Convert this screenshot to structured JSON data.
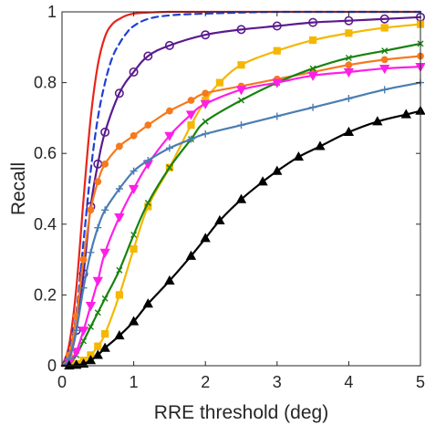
{
  "chart_data": {
    "type": "line",
    "title": "",
    "xlabel": "RRE threshold (deg)",
    "ylabel": "Recall",
    "xlim": [
      0,
      5
    ],
    "ylim": [
      0,
      1
    ],
    "xticks": [
      0,
      1,
      2,
      3,
      4,
      5
    ],
    "xtick_labels": [
      "0",
      "1",
      "2",
      "3",
      "4",
      "5"
    ],
    "yticks": [
      0,
      0.2,
      0.4,
      0.6,
      0.8,
      1
    ],
    "ytick_labels": [
      "0",
      "0.2",
      "0.4",
      "0.6",
      "0.8",
      "1"
    ],
    "grid": false,
    "legend": "none",
    "series": [
      {
        "color": "#e8241b",
        "dash": "solid",
        "marker": "none",
        "x": [
          0,
          0.1,
          0.2,
          0.3,
          0.4,
          0.5,
          0.6,
          0.7,
          0.8,
          0.9,
          1.0,
          1.2,
          1.5,
          2.0,
          3.0,
          4.0,
          5.0
        ],
        "y": [
          0,
          0.06,
          0.22,
          0.47,
          0.7,
          0.85,
          0.93,
          0.965,
          0.98,
          0.99,
          0.995,
          0.998,
          1,
          1,
          1,
          1,
          1
        ]
      },
      {
        "color": "#1f3fd6",
        "dash": "dashed",
        "marker": "none",
        "x": [
          0,
          0.1,
          0.2,
          0.3,
          0.4,
          0.5,
          0.6,
          0.7,
          0.8,
          0.9,
          1.0,
          1.2,
          1.5,
          2.0,
          3.0,
          4.0,
          5.0
        ],
        "y": [
          0,
          0.04,
          0.15,
          0.35,
          0.55,
          0.7,
          0.8,
          0.87,
          0.91,
          0.94,
          0.96,
          0.98,
          0.99,
          0.995,
          1,
          1,
          1
        ]
      },
      {
        "color": "#5b1a8e",
        "dash": "solid",
        "marker": "circle",
        "x": [
          0,
          0.1,
          0.2,
          0.3,
          0.4,
          0.5,
          0.6,
          0.8,
          1.0,
          1.2,
          1.5,
          2.0,
          2.5,
          3.0,
          3.5,
          4.0,
          4.5,
          5.0
        ],
        "y": [
          0,
          0.02,
          0.1,
          0.26,
          0.45,
          0.57,
          0.66,
          0.77,
          0.83,
          0.875,
          0.905,
          0.935,
          0.95,
          0.96,
          0.97,
          0.975,
          0.98,
          0.985
        ]
      },
      {
        "color": "#f5b700",
        "dash": "solid",
        "marker": "square",
        "x": [
          0,
          0.1,
          0.2,
          0.3,
          0.4,
          0.5,
          0.6,
          0.8,
          1.0,
          1.2,
          1.5,
          1.8,
          2.0,
          2.2,
          2.5,
          3.0,
          3.5,
          4.0,
          4.5,
          5.0
        ],
        "y": [
          0,
          0,
          0.005,
          0.015,
          0.03,
          0.055,
          0.09,
          0.2,
          0.33,
          0.45,
          0.56,
          0.68,
          0.75,
          0.8,
          0.85,
          0.89,
          0.92,
          0.94,
          0.955,
          0.965
        ]
      },
      {
        "color": "#f57a1e",
        "dash": "solid",
        "marker": "circle-filled",
        "x": [
          0,
          0.1,
          0.2,
          0.3,
          0.4,
          0.5,
          0.6,
          0.8,
          1.0,
          1.2,
          1.5,
          1.8,
          2.0,
          2.5,
          3.0,
          3.5,
          4.0,
          4.5,
          5.0
        ],
        "y": [
          0,
          0.03,
          0.14,
          0.3,
          0.44,
          0.52,
          0.57,
          0.62,
          0.65,
          0.68,
          0.72,
          0.75,
          0.77,
          0.79,
          0.81,
          0.83,
          0.85,
          0.865,
          0.875
        ]
      },
      {
        "color": "#17820f",
        "dash": "solid",
        "marker": "x",
        "x": [
          0,
          0.1,
          0.2,
          0.3,
          0.4,
          0.5,
          0.6,
          0.8,
          1.0,
          1.2,
          1.5,
          1.8,
          2.0,
          2.5,
          3.0,
          3.5,
          4.0,
          4.5,
          5.0
        ],
        "y": [
          0,
          0.005,
          0.03,
          0.07,
          0.11,
          0.15,
          0.19,
          0.27,
          0.37,
          0.46,
          0.56,
          0.64,
          0.69,
          0.75,
          0.8,
          0.84,
          0.87,
          0.89,
          0.91
        ]
      },
      {
        "color": "#ff1fe6",
        "dash": "solid",
        "marker": "triangle-down",
        "x": [
          0,
          0.1,
          0.2,
          0.3,
          0.4,
          0.5,
          0.6,
          0.8,
          1.0,
          1.2,
          1.5,
          1.8,
          2.0,
          2.5,
          3.0,
          3.5,
          4.0,
          4.5,
          5.0
        ],
        "y": [
          0,
          0.01,
          0.04,
          0.1,
          0.17,
          0.24,
          0.32,
          0.42,
          0.5,
          0.57,
          0.65,
          0.71,
          0.74,
          0.78,
          0.8,
          0.82,
          0.83,
          0.84,
          0.845
        ]
      },
      {
        "color": "#4a7db3",
        "dash": "solid",
        "marker": "plus",
        "x": [
          0,
          0.1,
          0.2,
          0.3,
          0.4,
          0.5,
          0.6,
          0.8,
          1.0,
          1.2,
          1.5,
          1.8,
          2.0,
          2.5,
          3.0,
          3.5,
          4.0,
          4.5,
          5.0
        ],
        "y": [
          0,
          0.02,
          0.1,
          0.22,
          0.32,
          0.39,
          0.44,
          0.5,
          0.55,
          0.58,
          0.615,
          0.64,
          0.655,
          0.68,
          0.705,
          0.73,
          0.755,
          0.78,
          0.8
        ]
      },
      {
        "color": "#000000",
        "dash": "solid",
        "marker": "triangle-up",
        "x": [
          0,
          0.1,
          0.2,
          0.3,
          0.4,
          0.5,
          0.6,
          0.8,
          1.0,
          1.2,
          1.5,
          1.8,
          2.0,
          2.2,
          2.5,
          2.8,
          3.0,
          3.3,
          3.6,
          4.0,
          4.4,
          4.8,
          5.0
        ],
        "y": [
          0,
          0,
          0.002,
          0.005,
          0.015,
          0.03,
          0.05,
          0.085,
          0.125,
          0.175,
          0.24,
          0.31,
          0.36,
          0.41,
          0.47,
          0.52,
          0.55,
          0.59,
          0.62,
          0.66,
          0.69,
          0.71,
          0.72
        ]
      }
    ]
  }
}
